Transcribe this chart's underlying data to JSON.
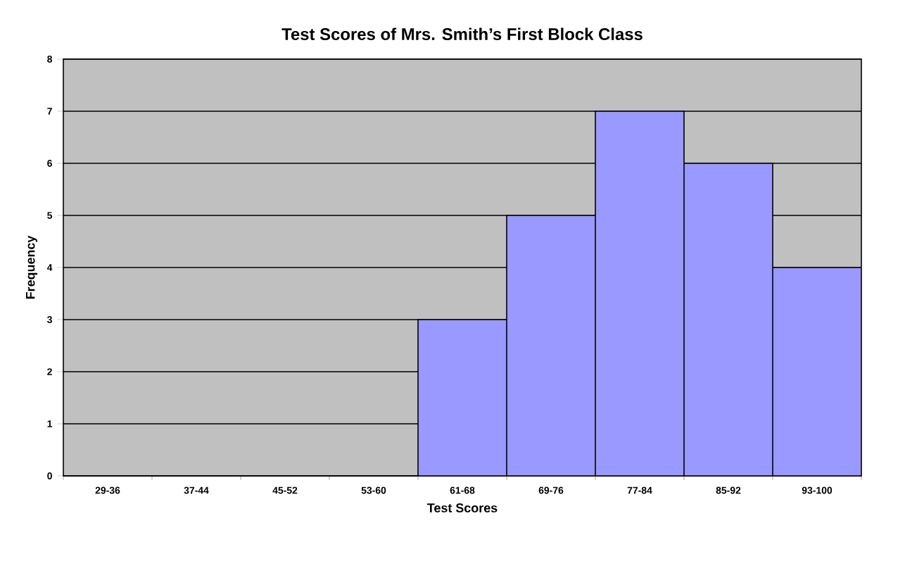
{
  "chart_data": {
    "type": "bar",
    "title": "Test Scores of Mrs. Smith’s First Block Class",
    "xlabel": "Test Scores",
    "ylabel": "Frequency",
    "categories": [
      "29-36",
      "37-44",
      "45-52",
      "53-60",
      "61-68",
      "69-76",
      "77-84",
      "85-92",
      "93-100"
    ],
    "values": [
      0,
      0,
      0,
      0,
      3,
      5,
      7,
      6,
      4
    ],
    "color": "#9999ff",
    "ylim": [
      0,
      8
    ],
    "yticks": [
      0,
      1,
      2,
      3,
      4,
      5,
      6,
      7,
      8
    ],
    "grid": "y"
  }
}
